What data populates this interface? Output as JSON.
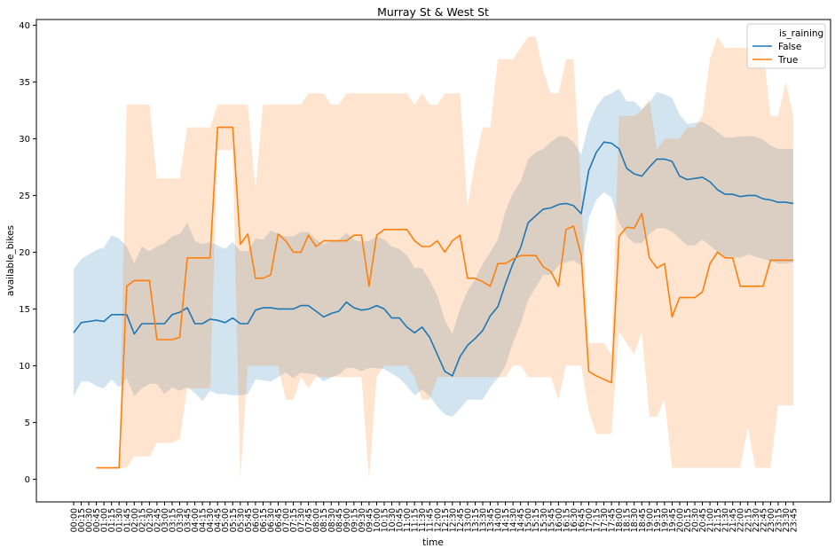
{
  "chart_data": {
    "type": "line",
    "title": "Murray St & West St",
    "xlabel": "time",
    "ylabel": "available_bikes",
    "ylim": [
      -2,
      40.5
    ],
    "yticks": [
      0,
      5,
      10,
      15,
      20,
      25,
      30,
      35,
      40
    ],
    "grid": false,
    "legend": {
      "position": "top-right",
      "title": "is_raining"
    },
    "categories": [
      "00:00",
      "00:15",
      "00:30",
      "00:45",
      "01:00",
      "01:15",
      "01:30",
      "01:45",
      "02:00",
      "02:15",
      "02:30",
      "02:45",
      "03:00",
      "03:15",
      "03:30",
      "03:45",
      "04:00",
      "04:15",
      "04:30",
      "04:45",
      "05:00",
      "05:15",
      "05:30",
      "05:45",
      "06:00",
      "06:15",
      "06:30",
      "06:45",
      "07:00",
      "07:15",
      "07:30",
      "07:45",
      "08:00",
      "08:15",
      "08:30",
      "08:45",
      "09:00",
      "09:15",
      "09:30",
      "09:45",
      "10:00",
      "10:15",
      "10:30",
      "10:45",
      "11:00",
      "11:15",
      "11:30",
      "11:45",
      "12:00",
      "12:15",
      "12:30",
      "12:45",
      "13:00",
      "13:15",
      "13:30",
      "13:45",
      "14:00",
      "14:15",
      "14:30",
      "14:45",
      "15:00",
      "15:15",
      "15:30",
      "15:45",
      "16:00",
      "16:15",
      "16:30",
      "16:45",
      "17:00",
      "17:15",
      "17:30",
      "17:45",
      "18:00",
      "18:15",
      "18:30",
      "18:45",
      "19:00",
      "19:15",
      "19:30",
      "19:45",
      "20:00",
      "20:15",
      "20:30",
      "20:45",
      "21:00",
      "21:15",
      "21:30",
      "21:45",
      "22:00",
      "22:15",
      "22:30",
      "22:45",
      "23:00",
      "23:15",
      "23:30",
      "23:45"
    ],
    "series": [
      {
        "name": "False",
        "color": "#1f77b4",
        "values": [
          12.9,
          13.8,
          13.9,
          14.0,
          13.9,
          14.5,
          14.5,
          14.5,
          12.8,
          13.7,
          13.7,
          13.7,
          13.7,
          14.5,
          14.7,
          15.1,
          13.7,
          13.7,
          14.1,
          14.0,
          13.8,
          14.2,
          13.7,
          13.7,
          14.9,
          15.1,
          15.1,
          15.0,
          15.0,
          15.0,
          15.3,
          15.3,
          14.8,
          14.3,
          14.6,
          14.8,
          15.6,
          15.1,
          14.9,
          15.0,
          15.3,
          15.0,
          14.2,
          14.2,
          13.4,
          12.9,
          13.4,
          12.5,
          11.0,
          9.5,
          9.1,
          10.8,
          11.8,
          12.4,
          13.1,
          14.4,
          15.2,
          17.2,
          19.0,
          20.4,
          22.6,
          23.2,
          23.8,
          23.9,
          24.2,
          24.3,
          24.1,
          23.4,
          27.2,
          28.8,
          29.7,
          29.6,
          29.1,
          27.4,
          26.9,
          26.7,
          27.5,
          28.2,
          28.2,
          28.0,
          26.7,
          26.4,
          26.5,
          26.6,
          26.2,
          25.5,
          25.1,
          25.1,
          24.9,
          25.0,
          25.0,
          24.7,
          24.6,
          24.4,
          24.4,
          24.3
        ],
        "ci_lower": [
          7.3,
          8.6,
          8.6,
          8.2,
          8.0,
          8.8,
          8.1,
          8.9,
          7.3,
          8.0,
          8.4,
          8.4,
          7.5,
          8.1,
          7.8,
          8.1,
          7.6,
          6.9,
          7.8,
          7.5,
          7.5,
          7.4,
          7.4,
          7.5,
          8.8,
          8.7,
          8.6,
          9.0,
          9.4,
          8.9,
          9.4,
          9.3,
          9.2,
          8.6,
          9.0,
          9.2,
          9.8,
          9.8,
          9.5,
          9.8,
          9.8,
          9.7,
          9.3,
          8.9,
          8.2,
          7.4,
          7.9,
          7.3,
          6.4,
          5.7,
          5.5,
          6.2,
          7.0,
          7.0,
          7.0,
          8.1,
          8.9,
          10.0,
          12.0,
          13.7,
          15.8,
          16.9,
          18.0,
          18.0,
          18.8,
          19.1,
          19.3,
          18.8,
          23.0,
          24.6,
          25.3,
          24.8,
          22.6,
          21.4,
          20.8,
          20.8,
          21.6,
          22.1,
          22.1,
          21.8,
          21.2,
          20.6,
          20.6,
          21.1,
          20.6,
          20.0,
          19.6,
          19.6,
          19.5,
          19.8,
          19.6,
          19.4,
          19.2,
          19.0,
          19.0,
          19.1
        ],
        "ci_upper": [
          18.5,
          19.4,
          19.8,
          20.2,
          20.4,
          21.5,
          21.2,
          20.5,
          19.0,
          20.5,
          20.1,
          20.5,
          20.8,
          21.4,
          21.6,
          22.6,
          21.0,
          20.7,
          20.9,
          20.6,
          20.3,
          20.9,
          20.1,
          20.1,
          21.2,
          21.1,
          21.9,
          21.6,
          21.4,
          21.4,
          21.8,
          21.8,
          21.1,
          20.7,
          21.0,
          21.1,
          21.7,
          21.1,
          20.9,
          21.0,
          21.4,
          21.1,
          20.5,
          20.3,
          19.7,
          18.6,
          18.6,
          17.5,
          16.2,
          14.0,
          12.8,
          15.0,
          16.6,
          17.6,
          19.0,
          20.0,
          21.1,
          23.6,
          25.2,
          26.2,
          28.2,
          28.8,
          29.1,
          29.7,
          30.2,
          30.2,
          29.7,
          28.6,
          31.3,
          32.8,
          33.7,
          34.0,
          34.4,
          33.3,
          33.3,
          32.6,
          33.2,
          34.1,
          33.9,
          33.6,
          32.1,
          31.3,
          31.4,
          31.5,
          31.1,
          30.6,
          30.1,
          30.1,
          30.2,
          30.2,
          30.2,
          29.9,
          29.4,
          29.1,
          29.1,
          29.1
        ]
      },
      {
        "name": "True",
        "color": "#ff7f0e",
        "values": [
          null,
          null,
          null,
          1.0,
          1.0,
          1.0,
          1.0,
          17.0,
          17.5,
          17.5,
          17.5,
          12.3,
          12.3,
          12.3,
          12.5,
          19.5,
          19.5,
          19.5,
          19.5,
          31.0,
          31.0,
          31.0,
          20.7,
          21.6,
          17.7,
          17.7,
          18.0,
          21.6,
          21.0,
          20.0,
          20.0,
          21.5,
          20.5,
          21.0,
          21.0,
          21.0,
          21.0,
          21.5,
          21.5,
          17.0,
          21.5,
          22.0,
          22.0,
          22.0,
          22.0,
          21.0,
          20.5,
          20.5,
          21.0,
          20.0,
          21.0,
          21.5,
          17.7,
          17.7,
          17.4,
          17.0,
          19.0,
          19.0,
          19.4,
          19.7,
          19.7,
          19.7,
          18.7,
          18.3,
          17.0,
          22.0,
          22.3,
          19.7,
          9.5,
          9.1,
          8.8,
          8.5,
          21.4,
          22.2,
          22.1,
          23.4,
          19.5,
          18.6,
          19.0,
          14.3,
          16.0,
          16.0,
          16.0,
          16.5,
          19.0,
          20.0,
          19.5,
          19.5,
          17.0,
          17.0,
          17.0,
          17.0,
          19.3,
          19.3,
          19.3,
          19.3
        ],
        "ci_lower": [
          null,
          null,
          null,
          1.0,
          1.0,
          1.0,
          1.0,
          1.0,
          2.0,
          2.0,
          2.0,
          3.2,
          3.2,
          3.2,
          3.5,
          8.0,
          8.0,
          8.0,
          8.0,
          29.0,
          29.0,
          29.0,
          0.0,
          10.0,
          10.0,
          10.0,
          10.0,
          10.0,
          7.0,
          7.0,
          9.0,
          8.0,
          9.0,
          9.0,
          9.0,
          9.0,
          9.0,
          9.0,
          9.0,
          0.0,
          9.0,
          10.0,
          10.0,
          10.0,
          10.0,
          9.0,
          7.0,
          7.0,
          9.0,
          9.0,
          9.0,
          9.0,
          9.0,
          9.0,
          9.0,
          9.0,
          9.0,
          9.0,
          10.0,
          10.0,
          9.0,
          9.0,
          9.0,
          9.0,
          7.0,
          10.0,
          10.0,
          10.0,
          6.0,
          4.0,
          4.0,
          4.0,
          13.0,
          12.0,
          11.0,
          13.0,
          5.5,
          5.5,
          7.0,
          1.0,
          1.0,
          1.0,
          1.0,
          1.0,
          1.0,
          1.0,
          1.0,
          1.0,
          1.0,
          4.5,
          1.0,
          1.0,
          1.0,
          6.5,
          6.5,
          6.5
        ],
        "ci_upper": [
          null,
          null,
          null,
          1.0,
          1.0,
          1.0,
          1.0,
          33.0,
          33.0,
          33.0,
          33.0,
          26.5,
          26.5,
          26.5,
          26.5,
          31.0,
          31.0,
          31.0,
          31.0,
          33.0,
          33.0,
          33.0,
          33.0,
          33.0,
          25.5,
          33.0,
          33.0,
          33.0,
          33.0,
          33.0,
          33.0,
          34.0,
          34.0,
          34.0,
          33.0,
          33.0,
          34.0,
          34.0,
          34.0,
          34.0,
          34.0,
          34.0,
          34.0,
          34.0,
          34.0,
          33.0,
          34.0,
          33.0,
          33.0,
          34.0,
          34.0,
          34.0,
          24.0,
          28.0,
          31.0,
          31.0,
          37.0,
          37.0,
          37.0,
          38.0,
          39.0,
          39.0,
          36.0,
          34.0,
          34.0,
          37.0,
          37.0,
          25.0,
          12.0,
          12.0,
          12.0,
          11.0,
          32.0,
          32.0,
          32.0,
          32.5,
          33.5,
          29.0,
          30.0,
          30.0,
          30.0,
          31.0,
          31.0,
          32.0,
          37.0,
          39.0,
          38.0,
          38.0,
          38.0,
          38.0,
          38.0,
          38.0,
          32.0,
          32.0,
          35.0,
          32.0
        ]
      }
    ]
  }
}
